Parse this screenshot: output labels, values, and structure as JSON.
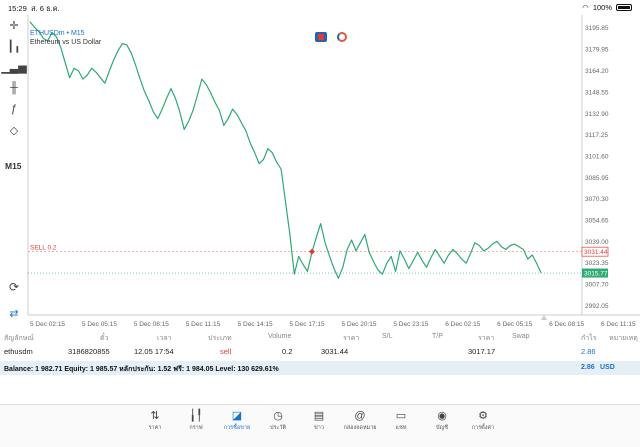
{
  "status_bar": {
    "time": "15:29",
    "date": "ส. 6 ธ.ค.",
    "battery": "100%"
  },
  "chart": {
    "symbol": "ETHUSDm • M15",
    "description": "Ethereum vs US Dollar",
    "timeframe": "M15",
    "line_color": "#2eaa73",
    "sell_label": "SELL 0.2",
    "sell_price_label": "3031.44",
    "current_price_label": "3015.77"
  },
  "chart_data": {
    "type": "line",
    "title": "ETHUSDm • M15",
    "subtitle": "Ethereum vs US Dollar",
    "y_ticks": [
      "3195.85",
      "3179.95",
      "3164.20",
      "3148.55",
      "3132.90",
      "3117.25",
      "3101.60",
      "3085.95",
      "3070.30",
      "3054.65",
      "3039.00",
      "3023.35",
      "3007.70",
      "2992.05"
    ],
    "x_ticks": [
      "5 Dec 02:15",
      "5 Dec 05:15",
      "5 Dec 08:15",
      "5 Dec 11:15",
      "5 Dec 14:15",
      "5 Dec 17:15",
      "5 Dec 20:15",
      "5 Dec 23:15",
      "6 Dec 02:15",
      "6 Dec 05:15",
      "6 Dec 08:15",
      "6 Dec 11:15"
    ],
    "ylim": [
      2985,
      3205
    ],
    "sell_entry": 3031.44,
    "current_price": 3015.77,
    "values": [
      3200,
      3196,
      3193,
      3188,
      3186,
      3192,
      3189,
      3181,
      3170,
      3159,
      3166,
      3164,
      3158,
      3161,
      3166,
      3163,
      3159,
      3155,
      3164,
      3172,
      3179,
      3184,
      3183,
      3177,
      3168,
      3158,
      3149,
      3142,
      3134,
      3129,
      3136,
      3144,
      3151,
      3144,
      3134,
      3121,
      3127,
      3135,
      3146,
      3158,
      3154,
      3148,
      3141,
      3135,
      3124,
      3129,
      3136,
      3132,
      3126,
      3120,
      3111,
      3104,
      3096,
      3099,
      3107,
      3104,
      3097,
      3092,
      3068,
      3044,
      3015,
      3028,
      3022,
      3017,
      3031,
      3042,
      3052,
      3038,
      3028,
      3019,
      3012,
      3020,
      3033,
      3040,
      3032,
      3038,
      3044,
      3031,
      3024,
      3018,
      3015,
      3023,
      3028,
      3017,
      3032,
      3026,
      3019,
      3025,
      3031,
      3025,
      3020,
      3027,
      3033,
      3028,
      3023,
      3029,
      3033,
      3030,
      3026,
      3023,
      3030,
      3038,
      3036,
      3032,
      3034,
      3037,
      3039,
      3035,
      3033,
      3036,
      3037,
      3035,
      3033,
      3026,
      3029,
      3023,
      3016
    ]
  },
  "table": {
    "headers": [
      "สัญลักษณ์",
      "ตั๋ว",
      "เวลา",
      "ประเภท",
      "Volume",
      "ราคา",
      "S/L",
      "T/P",
      "ราคา",
      "Swap",
      "กำไร",
      "หมายเหตุ"
    ],
    "row": {
      "symbol": "ethusdm",
      "ticket": "3186820855",
      "time": "12.05 17:54",
      "type": "sell",
      "volume": "0.2",
      "open_price": "3031.44",
      "price": "3017.17",
      "profit": "2.86"
    },
    "balance_text": "Balance: 1 982.71 Equity: 1 985.57 หลักประกัน: 1.52 ฟรี: 1 984.05 Level: 130 629.61%",
    "balance_profit": "2.86",
    "currency": "USD"
  },
  "tabs": [
    {
      "label": "ราคา",
      "icon": "quotes-icon"
    },
    {
      "label": "กราฟ",
      "icon": "chart-icon"
    },
    {
      "label": "การซื้อขาย",
      "icon": "trade-icon"
    },
    {
      "label": "ประวัติ",
      "icon": "history-icon"
    },
    {
      "label": "ข่าว",
      "icon": "news-icon"
    },
    {
      "label": "กล่องจดหมาย",
      "icon": "mailbox-icon"
    },
    {
      "label": "แชท",
      "icon": "chat-icon"
    },
    {
      "label": "บัญชี",
      "icon": "account-icon"
    },
    {
      "label": "การตั้งค่า",
      "icon": "settings-icon"
    }
  ],
  "colors": {
    "accent": "#1a73c9",
    "sell": "#e03b3b",
    "line": "#2eaa73",
    "balance_bg": "#e6eef6"
  }
}
